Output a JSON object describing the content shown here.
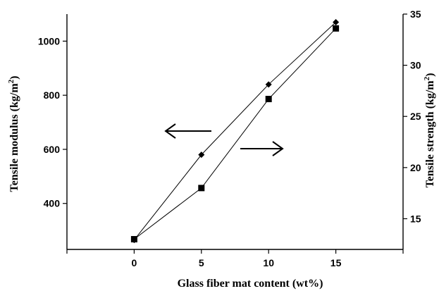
{
  "chart_data": {
    "type": "line",
    "xlabel": "Glass fiber mat content (wt%)",
    "ylabel_left": "Tensile modulus (kg/m",
    "ylabel_right": "Tensile strength (kg/m",
    "ylabel_sup": "2",
    "ylabel_close": ")",
    "x_ticks": [
      "0",
      "5",
      "10",
      "15"
    ],
    "x_range": [
      -5,
      20
    ],
    "y_left_ticks": [
      "400",
      "600",
      "800",
      "1000"
    ],
    "y_left_range": [
      230,
      1100
    ],
    "y_right_ticks": [
      "15",
      "20",
      "25",
      "30",
      "35"
    ],
    "y_right_range": [
      12,
      35
    ],
    "x": [
      0,
      5,
      10,
      15
    ],
    "series": [
      {
        "axis": "left",
        "marker": "diamond",
        "values": [
          265,
          580,
          840,
          1070
        ]
      },
      {
        "axis": "right",
        "marker": "square",
        "values": [
          13,
          18,
          26.7,
          33.6
        ]
      }
    ],
    "annotations": [
      {
        "shape": "arrow",
        "direction": "left",
        "points_to": "left axis"
      },
      {
        "shape": "arrow",
        "direction": "right",
        "points_to": "right axis"
      }
    ],
    "grid": false,
    "legend": "none"
  }
}
